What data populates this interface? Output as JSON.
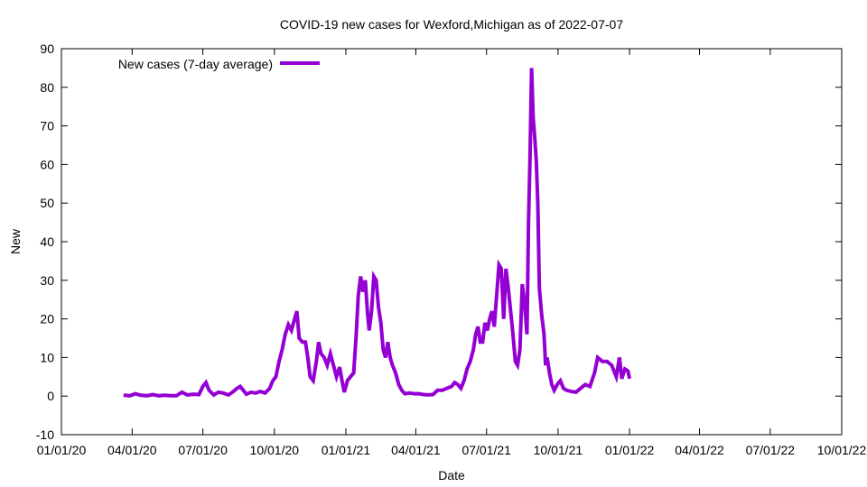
{
  "chart_data": {
    "type": "line",
    "title": "COVID-19 new cases for Wexford,Michigan as of 2022-07-07",
    "xlabel": "Date",
    "ylabel": "New",
    "xlim": [
      0,
      1004
    ],
    "ylim": [
      -10,
      90
    ],
    "x_ticks": [
      {
        "label": "01/01/20",
        "value": 0
      },
      {
        "label": "04/01/20",
        "value": 91
      },
      {
        "label": "07/01/20",
        "value": 182
      },
      {
        "label": "10/01/20",
        "value": 274
      },
      {
        "label": "01/01/21",
        "value": 366
      },
      {
        "label": "04/01/21",
        "value": 456
      },
      {
        "label": "07/01/21",
        "value": 547
      },
      {
        "label": "10/01/21",
        "value": 639
      },
      {
        "label": "01/01/22",
        "value": 731
      },
      {
        "label": "04/01/22",
        "value": 821
      },
      {
        "label": "07/01/22",
        "value": 912
      },
      {
        "label": "10/01/22",
        "value": 1004
      }
    ],
    "y_ticks": [
      -10,
      0,
      10,
      20,
      30,
      40,
      50,
      60,
      70,
      80,
      90
    ],
    "legend": {
      "position": "top-left",
      "entries": [
        "New cases (7-day average)"
      ]
    },
    "series": [
      {
        "name": "New cases (7-day average)",
        "color": "#9400d3",
        "points": [
          [
            80,
            0.2
          ],
          [
            88,
            0.1
          ],
          [
            95,
            0.6
          ],
          [
            102,
            0.2
          ],
          [
            110,
            0.1
          ],
          [
            118,
            0.4
          ],
          [
            125,
            0.1
          ],
          [
            133,
            0.2
          ],
          [
            140,
            0.1
          ],
          [
            148,
            0.1
          ],
          [
            155,
            1.0
          ],
          [
            162,
            0.3
          ],
          [
            170,
            0.5
          ],
          [
            177,
            0.4
          ],
          [
            182,
            2.5
          ],
          [
            186,
            3.5
          ],
          [
            190,
            1.5
          ],
          [
            196,
            0.3
          ],
          [
            202,
            1.0
          ],
          [
            208,
            0.8
          ],
          [
            215,
            0.3
          ],
          [
            220,
            1.0
          ],
          [
            226,
            2.0
          ],
          [
            230,
            2.5
          ],
          [
            234,
            1.5
          ],
          [
            238,
            0.5
          ],
          [
            244,
            1.0
          ],
          [
            250,
            0.8
          ],
          [
            256,
            1.2
          ],
          [
            262,
            0.8
          ],
          [
            268,
            2.0
          ],
          [
            272,
            4.0
          ],
          [
            276,
            5.0
          ],
          [
            280,
            9.0
          ],
          [
            284,
            12.0
          ],
          [
            288,
            16.0
          ],
          [
            292,
            18.5
          ],
          [
            296,
            17.0
          ],
          [
            300,
            20.0
          ],
          [
            303,
            22.0
          ],
          [
            306,
            15.0
          ],
          [
            310,
            14.0
          ],
          [
            314,
            14.0
          ],
          [
            317,
            10.0
          ],
          [
            320,
            5.0
          ],
          [
            324,
            4.0
          ],
          [
            328,
            9.0
          ],
          [
            331,
            14.0
          ],
          [
            334,
            11.0
          ],
          [
            338,
            10.0
          ],
          [
            342,
            8.0
          ],
          [
            346,
            11.0
          ],
          [
            350,
            8.0
          ],
          [
            354,
            5.0
          ],
          [
            358,
            7.5
          ],
          [
            361,
            4.0
          ],
          [
            364,
            1.0
          ],
          [
            368,
            4.0
          ],
          [
            372,
            5.0
          ],
          [
            376,
            6.0
          ],
          [
            379,
            15.0
          ],
          [
            382,
            26.0
          ],
          [
            385,
            31.0
          ],
          [
            388,
            27.0
          ],
          [
            391,
            30.0
          ],
          [
            394,
            21.0
          ],
          [
            396,
            17.0
          ],
          [
            399,
            22.0
          ],
          [
            402,
            31.0
          ],
          [
            405,
            30.0
          ],
          [
            408,
            23.0
          ],
          [
            411,
            19.0
          ],
          [
            414,
            12.0
          ],
          [
            417,
            10.0
          ],
          [
            420,
            14.0
          ],
          [
            423,
            10.0
          ],
          [
            426,
            8.0
          ],
          [
            430,
            6.0
          ],
          [
            434,
            3.0
          ],
          [
            438,
            1.5
          ],
          [
            442,
            0.6
          ],
          [
            448,
            0.8
          ],
          [
            454,
            0.6
          ],
          [
            460,
            0.6
          ],
          [
            466,
            0.4
          ],
          [
            472,
            0.3
          ],
          [
            478,
            0.4
          ],
          [
            484,
            1.5
          ],
          [
            490,
            1.5
          ],
          [
            496,
            2.0
          ],
          [
            502,
            2.5
          ],
          [
            506,
            3.5
          ],
          [
            510,
            3.0
          ],
          [
            514,
            2.0
          ],
          [
            518,
            4.0
          ],
          [
            522,
            7.0
          ],
          [
            526,
            9.0
          ],
          [
            530,
            12.0
          ],
          [
            533,
            16.0
          ],
          [
            536,
            18.0
          ],
          [
            539,
            14.0
          ],
          [
            542,
            14.0
          ],
          [
            545,
            19.0
          ],
          [
            548,
            17.0
          ],
          [
            551,
            20.0
          ],
          [
            554,
            22.0
          ],
          [
            557,
            18.0
          ],
          [
            560,
            26.0
          ],
          [
            563,
            34.0
          ],
          [
            566,
            33.0
          ],
          [
            569,
            20.0
          ],
          [
            572,
            33.0
          ],
          [
            575,
            28.0
          ],
          [
            578,
            22.0
          ],
          [
            581,
            16.0
          ],
          [
            584,
            9.0
          ],
          [
            587,
            8.0
          ],
          [
            590,
            12.0
          ],
          [
            593,
            29.0
          ],
          [
            596,
            24.0
          ],
          [
            599,
            16.0
          ],
          [
            601,
            45.0
          ],
          [
            603,
            62.0
          ],
          [
            605,
            85.0
          ],
          [
            607,
            72.0
          ],
          [
            609,
            67.0
          ],
          [
            611,
            61.0
          ],
          [
            613,
            50.0
          ],
          [
            615,
            28.0
          ],
          [
            618,
            21.0
          ],
          [
            621,
            16.0
          ],
          [
            623,
            8.0
          ],
          [
            625,
            10.0
          ],
          [
            628,
            6.0
          ],
          [
            631,
            3.0
          ],
          [
            634,
            1.5
          ],
          [
            638,
            3.0
          ],
          [
            642,
            4.0
          ],
          [
            646,
            2.0
          ],
          [
            650,
            1.5
          ],
          [
            656,
            1.2
          ],
          [
            662,
            1.0
          ],
          [
            668,
            2.0
          ],
          [
            674,
            3.0
          ],
          [
            680,
            2.5
          ],
          [
            686,
            6.0
          ],
          [
            690,
            10.0
          ],
          [
            696,
            9.0
          ],
          [
            702,
            9.0
          ],
          [
            708,
            8.0
          ],
          [
            712,
            6.0
          ],
          [
            714,
            5.0
          ],
          [
            718,
            10.0
          ],
          [
            721,
            4.5
          ],
          [
            725,
            7.0
          ],
          [
            729,
            6.5
          ],
          [
            731,
            4.5
          ]
        ]
      }
    ]
  }
}
